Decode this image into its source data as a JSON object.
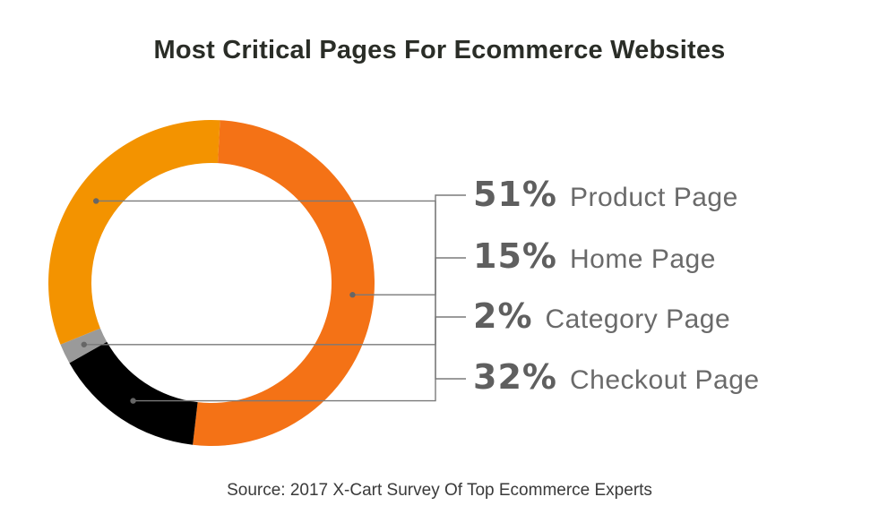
{
  "chart_data": {
    "type": "pie",
    "variant": "donut",
    "title": "Most Critical Pages For Ecommerce Websites",
    "source": "Source: 2017 X-Cart Survey Of Top Ecommerce Experts",
    "slices": [
      {
        "label": "Product Page",
        "value": 51,
        "display": "51%",
        "color": "#f47216"
      },
      {
        "label": "Home Page",
        "value": 15,
        "display": "15%",
        "color": "#000000"
      },
      {
        "label": "Category Page",
        "value": 2,
        "display": "2%",
        "color": "#9a9a9a"
      },
      {
        "label": "Checkout Page",
        "value": 32,
        "display": "32%",
        "color": "#f39300"
      }
    ],
    "legend_placement": "right"
  },
  "colors": {
    "leader_line": "#7a7a7a",
    "percent_text": "#5f5f5f",
    "label_text": "#6a6a6a",
    "title_text": "#2a2d27"
  }
}
